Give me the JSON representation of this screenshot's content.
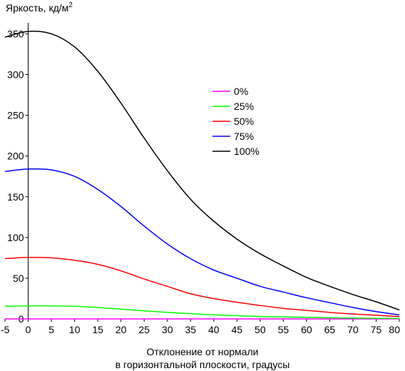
{
  "chart_data": {
    "type": "line",
    "ylabel": "Яркость, кд/м",
    "ylabel_sup": "2",
    "xlabel_line1": "Отклонение от нормали",
    "xlabel_line2": "в горизонтальной плоскости, градусы",
    "xlim": [
      -5,
      80
    ],
    "ylim": [
      0,
      360
    ],
    "x_ticks": [
      "-5",
      "0",
      "5",
      "10",
      "15",
      "20",
      "25",
      "30",
      "35",
      "40",
      "45",
      "50",
      "55",
      "60",
      "65",
      "70",
      "75",
      "80"
    ],
    "y_ticks": [
      "0",
      "50",
      "100",
      "150",
      "200",
      "250",
      "300",
      "350"
    ],
    "legend_position": "center-right",
    "grid": false,
    "x": [
      -5,
      0,
      5,
      10,
      15,
      20,
      25,
      30,
      35,
      40,
      45,
      50,
      55,
      60,
      65,
      70,
      75,
      80
    ],
    "series": [
      {
        "name": "0%",
        "color": "#ff00ff",
        "values": [
          0,
          0,
          0,
          0,
          0,
          0,
          0,
          0,
          0,
          0,
          0,
          0,
          0,
          0,
          0,
          0,
          0,
          0
        ]
      },
      {
        "name": "25%",
        "color": "#00ff00",
        "values": [
          15.5,
          16,
          16,
          15.5,
          14,
          12,
          10,
          8,
          6.5,
          5,
          4,
          3,
          2.5,
          2,
          1.5,
          1,
          0.8,
          0.5
        ]
      },
      {
        "name": "50%",
        "color": "#ff0000",
        "values": [
          74,
          75.5,
          75,
          72,
          67,
          59,
          49,
          40,
          31,
          25,
          20.5,
          16.5,
          13,
          10.5,
          8,
          6,
          4.5,
          3
        ]
      },
      {
        "name": "75%",
        "color": "#0000ff",
        "values": [
          181,
          184,
          183,
          175,
          159,
          138,
          114,
          92,
          74,
          60,
          50,
          40,
          33,
          26,
          20,
          14,
          9,
          5
        ]
      },
      {
        "name": "100%",
        "color": "#000000",
        "values": [
          346,
          353,
          350,
          334,
          304,
          265,
          222,
          182,
          147,
          120,
          98,
          80,
          65,
          51,
          40,
          30,
          21,
          11
        ]
      }
    ]
  }
}
